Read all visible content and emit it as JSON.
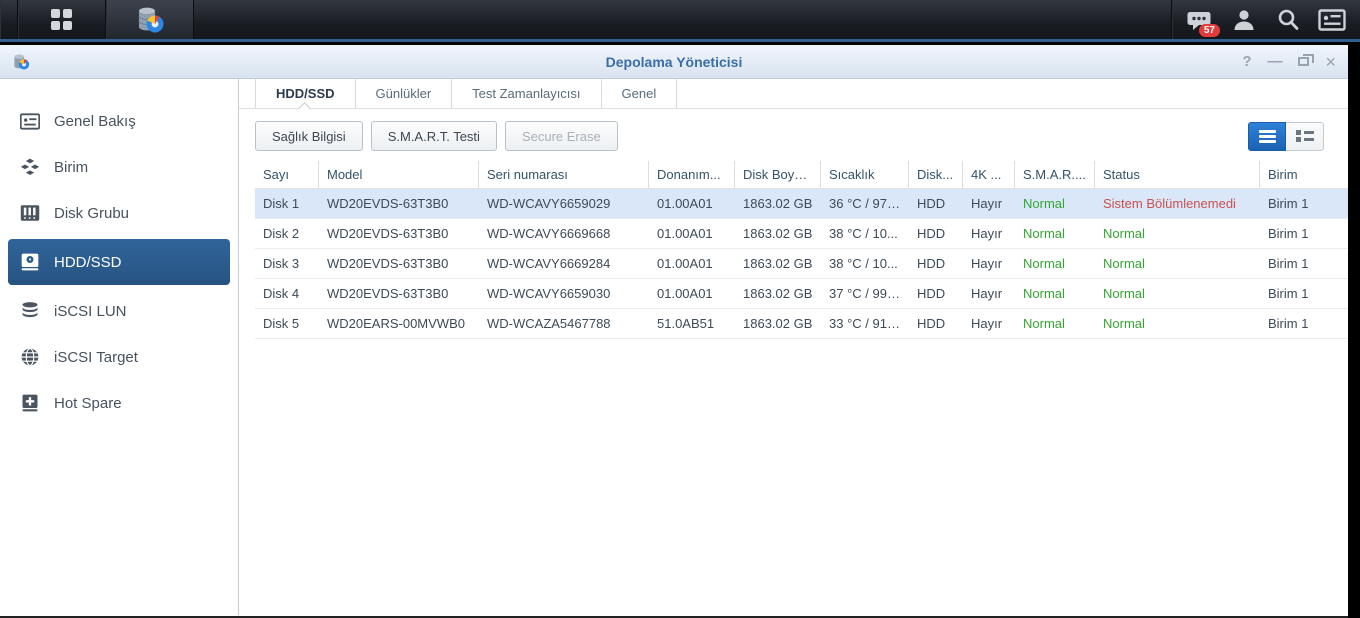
{
  "taskbar": {
    "apps_menu": "main-menu",
    "active_app": "storage-manager",
    "notification_badge": "57"
  },
  "window": {
    "title": "Depolama Yöneticisi",
    "controls": {
      "help": "?",
      "minimize": "—",
      "close": "×"
    }
  },
  "sidebar": {
    "items": [
      {
        "label": "Genel Bakış",
        "icon": "overview-icon"
      },
      {
        "label": "Birim",
        "icon": "volume-icon"
      },
      {
        "label": "Disk Grubu",
        "icon": "disk-group-icon"
      },
      {
        "label": "HDD/SSD",
        "icon": "hdd-icon",
        "selected": true
      },
      {
        "label": "iSCSI LUN",
        "icon": "iscsi-lun-icon"
      },
      {
        "label": "iSCSI Target",
        "icon": "iscsi-target-icon"
      },
      {
        "label": "Hot Spare",
        "icon": "hot-spare-icon"
      }
    ]
  },
  "tabs": [
    {
      "label": "HDD/SSD",
      "active": true
    },
    {
      "label": "Günlükler",
      "active": false
    },
    {
      "label": "Test Zamanlayıcısı",
      "active": false
    },
    {
      "label": "Genel",
      "active": false
    }
  ],
  "toolbar": {
    "health_info_label": "Sağlık Bilgisi",
    "smart_test_label": "S.M.A.R.T. Testi",
    "secure_erase_label": "Secure Erase"
  },
  "table": {
    "columns": [
      {
        "label": "Sayı",
        "width": 64
      },
      {
        "label": "Model",
        "width": 160
      },
      {
        "label": "Seri numarası",
        "width": 170
      },
      {
        "label": "Donanım...",
        "width": 86
      },
      {
        "label": "Disk Boyu...",
        "width": 86
      },
      {
        "label": "Sıcaklık",
        "width": 88
      },
      {
        "label": "Disk...",
        "width": 54
      },
      {
        "label": "4K ...",
        "width": 52
      },
      {
        "label": "S.M.A.R....",
        "width": 80
      },
      {
        "label": "Status",
        "width": 165
      },
      {
        "label": "Birim",
        "width": 60
      }
    ],
    "rows": [
      {
        "selected": true,
        "cells": [
          "Disk 1",
          "WD20EVDS-63T3B0",
          "WD-WCAVY6659029",
          "01.00A01",
          "1863.02 GB",
          "36 °C / 97 ...",
          "HDD",
          "Hayır",
          {
            "t": "Normal",
            "c": "green"
          },
          {
            "t": "Sistem Bölümlenemedi",
            "c": "red"
          },
          "Birim 1"
        ]
      },
      {
        "selected": false,
        "cells": [
          "Disk 2",
          "WD20EVDS-63T3B0",
          "WD-WCAVY6669668",
          "01.00A01",
          "1863.02 GB",
          "38 °C / 10...",
          "HDD",
          "Hayır",
          {
            "t": "Normal",
            "c": "green"
          },
          {
            "t": "Normal",
            "c": "green"
          },
          "Birim 1"
        ]
      },
      {
        "selected": false,
        "cells": [
          "Disk 3",
          "WD20EVDS-63T3B0",
          "WD-WCAVY6669284",
          "01.00A01",
          "1863.02 GB",
          "38 °C / 10...",
          "HDD",
          "Hayır",
          {
            "t": "Normal",
            "c": "green"
          },
          {
            "t": "Normal",
            "c": "green"
          },
          "Birim 1"
        ]
      },
      {
        "selected": false,
        "cells": [
          "Disk 4",
          "WD20EVDS-63T3B0",
          "WD-WCAVY6659030",
          "01.00A01",
          "1863.02 GB",
          "37 °C / 99 ...",
          "HDD",
          "Hayır",
          {
            "t": "Normal",
            "c": "green"
          },
          {
            "t": "Normal",
            "c": "green"
          },
          "Birim 1"
        ]
      },
      {
        "selected": false,
        "cells": [
          "Disk 5",
          "WD20EARS-00MVWB0",
          "WD-WCAZA5467788",
          "51.0AB51",
          "1863.02 GB",
          "33 °C / 91 ...",
          "HDD",
          "Hayır",
          {
            "t": "Normal",
            "c": "green"
          },
          {
            "t": "Normal",
            "c": "green"
          },
          "Birim 1"
        ]
      }
    ]
  },
  "colors": {
    "accent_blue": "#1f6cc5",
    "sidebar_selected": "#2b5c8a",
    "selected_row": "#d9e7f8",
    "status_green": "#33a532",
    "status_red": "#c9514e",
    "title_blue": "#3a6ea5",
    "badge_red": "#e23b3b",
    "taskbar_dark": "#1a1d23"
  }
}
